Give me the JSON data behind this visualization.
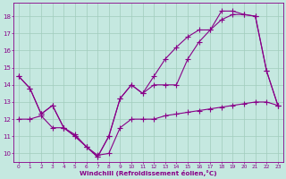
{
  "bg_color": "#c5e8e0",
  "grid_color": "#a0ccbc",
  "line_color": "#880088",
  "xlabel": "Windchill (Refroidissement éolien,°C)",
  "x": [
    0,
    1,
    2,
    3,
    4,
    5,
    6,
    7,
    8,
    9,
    10,
    11,
    12,
    13,
    14,
    15,
    16,
    17,
    18,
    19,
    20,
    21,
    22,
    23
  ],
  "line1": [
    14.5,
    13.8,
    12.3,
    12.8,
    11.5,
    11.0,
    10.4,
    9.8,
    11.0,
    13.2,
    14.0,
    13.5,
    14.5,
    15.5,
    16.2,
    16.8,
    17.2,
    17.2,
    18.3,
    18.3,
    18.1,
    18.0,
    14.8,
    12.8
  ],
  "line2": [
    14.5,
    13.8,
    12.3,
    12.8,
    11.5,
    11.0,
    10.4,
    9.8,
    11.0,
    13.2,
    14.0,
    13.5,
    14.0,
    14.0,
    14.0,
    15.5,
    16.5,
    17.2,
    17.8,
    18.1,
    18.1,
    18.0,
    14.8,
    12.8
  ],
  "line3": [
    12.0,
    12.0,
    12.2,
    11.5,
    11.5,
    11.1,
    10.4,
    9.9,
    10.0,
    11.5,
    12.0,
    12.0,
    12.0,
    12.2,
    12.3,
    12.4,
    12.5,
    12.6,
    12.7,
    12.8,
    12.9,
    13.0,
    13.0,
    12.8
  ],
  "xlim": [
    -0.5,
    23.5
  ],
  "ylim": [
    9.5,
    18.8
  ],
  "yticks": [
    10,
    11,
    12,
    13,
    14,
    15,
    16,
    17,
    18
  ],
  "xticks": [
    0,
    1,
    2,
    3,
    4,
    5,
    6,
    7,
    8,
    9,
    10,
    11,
    12,
    13,
    14,
    15,
    16,
    17,
    18,
    19,
    20,
    21,
    22,
    23
  ]
}
